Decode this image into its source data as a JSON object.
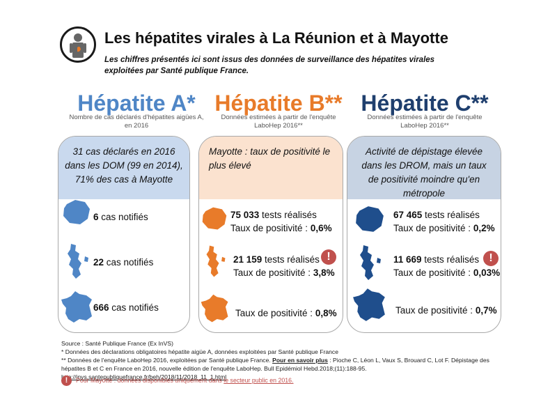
{
  "header": {
    "title": "Les hépatites virales à La Réunion et à Mayotte",
    "subtitle": "Les chiffres présentés ici sont issus des données de surveillance des hépatites virales exploitées par Santé publique France."
  },
  "colors": {
    "hep_a": "#4f86c6",
    "hep_b": "#e87b2a",
    "hep_c": "#1f3f6e",
    "alert": "#c0504d"
  },
  "hep_a": {
    "title": "Hépatite A*",
    "subtitle": "Nombre de cas déclarés d'hépatites aigües A, en 2016",
    "headline": "31 cas déclarés en 2016 dans les DOM (99 en 2014), 71% des cas à Mayotte",
    "rows": [
      {
        "number": "6",
        "text": " cas notifiés",
        "map_icon": "reunion-map-icon"
      },
      {
        "number": "22",
        "text": " cas notifiés",
        "map_icon": "mayotte-map-icon"
      },
      {
        "number": "666",
        "text": " cas notifiés",
        "map_icon": "france-map-icon"
      }
    ]
  },
  "hep_b": {
    "title": "Hépatite B**",
    "subtitle": "Données estimées à partir de l'enquête LaboHep 2016**",
    "headline": "Mayotte : taux de positivité le plus élevé",
    "rows": [
      {
        "tests_number": "75 033",
        "tests_text": " tests réalisés",
        "rate_label": "Taux de positivité : ",
        "rate": "0,6%",
        "map_icon": "reunion-map-icon"
      },
      {
        "tests_number": "21 159",
        "tests_text": " tests réalisés",
        "rate_label": "Taux de positivité : ",
        "rate": "3,8%",
        "map_icon": "mayotte-map-icon",
        "alert": "!"
      },
      {
        "rate_label": "Taux de positivité : ",
        "rate": "0,8%",
        "map_icon": "france-map-icon"
      }
    ]
  },
  "hep_c": {
    "title": "Hépatite C**",
    "subtitle": "Données estimées à partir de l'enquête LaboHep 2016**",
    "headline": "Activité de dépistage élevée dans les DROM, mais un taux de positivité moindre qu'en métropole",
    "rows": [
      {
        "tests_number": "67 465",
        "tests_text": " tests réalisés",
        "rate_label": "Taux de positivité : ",
        "rate": "0,2%",
        "map_icon": "reunion-map-icon"
      },
      {
        "tests_number": "11 669",
        "tests_text": " tests réalisés",
        "rate_label": "Taux de positivité : ",
        "rate": "0,03%",
        "map_icon": "mayotte-map-icon",
        "alert": "!"
      },
      {
        "rate_label": "Taux de positivité : ",
        "rate": "0,7%",
        "map_icon": "france-map-icon"
      }
    ]
  },
  "footer": {
    "source": "Source : Santé Publique France (Ex InVS)",
    "note_a": "* Données des déclarations obligatoires hépatite aigüe A, données exploitées par Santé publique France",
    "note_b_start": "** Données de l'enquête LaboHep 2016, exploitées par Santé publique France. ",
    "note_b_link_label": "Pour en savoir plus",
    "note_b_ref": " : Pioche C, Léon L, Vaux S, Brouard C, Lot F. Dépistage des hépatites B et C en France en 2016, nouvelle édition de l'enquête LaboHep. Bull Epidémiol Hebd.2018;(11):188-95. ",
    "note_b_url": "http://invs.santepubliquefrance.fr/beh/2018/11/2018_11_1.html",
    "mayotte_alert": "!",
    "mayotte_note_start": "Pour Mayotte : données disponibles uniquement dans ",
    "mayotte_note_underlined": "le secteur public en 2016."
  }
}
